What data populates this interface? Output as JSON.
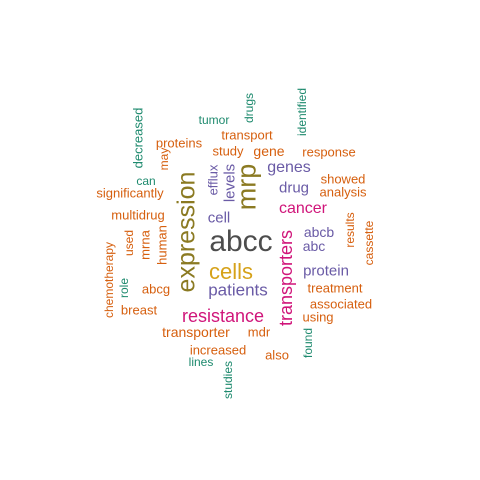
{
  "palette": {
    "dark_gray": "#4D4D4D",
    "gold": "#D6A21A",
    "olive": "#8B7A22",
    "magenta": "#D0157A",
    "purple": "#6A5BA6",
    "orange": "#D65F0E",
    "teal": "#1E8A6E"
  },
  "words": [
    {
      "text": "abcc",
      "color": "#4D4D4D"
    },
    {
      "text": "expression",
      "color": "#8B7A22"
    },
    {
      "text": "mrp",
      "color": "#8B7A22"
    },
    {
      "text": "cells",
      "color": "#D6A21A"
    },
    {
      "text": "resistance",
      "color": "#D0157A"
    },
    {
      "text": "transporters",
      "color": "#D0157A"
    },
    {
      "text": "cancer",
      "color": "#D0157A"
    },
    {
      "text": "patients",
      "color": "#6A5BA6"
    },
    {
      "text": "genes",
      "color": "#6A5BA6"
    },
    {
      "text": "drug",
      "color": "#6A5BA6"
    },
    {
      "text": "cell",
      "color": "#6A5BA6"
    },
    {
      "text": "levels",
      "color": "#6A5BA6"
    },
    {
      "text": "efflux",
      "color": "#6A5BA6"
    },
    {
      "text": "protein",
      "color": "#6A5BA6"
    },
    {
      "text": "abcb",
      "color": "#6A5BA6"
    },
    {
      "text": "abc",
      "color": "#6A5BA6"
    },
    {
      "text": "gene",
      "color": "#D65F0E"
    },
    {
      "text": "study",
      "color": "#D65F0E"
    },
    {
      "text": "transport",
      "color": "#D65F0E"
    },
    {
      "text": "proteins",
      "color": "#D65F0E"
    },
    {
      "text": "may",
      "color": "#D65F0E"
    },
    {
      "text": "significantly",
      "color": "#D65F0E"
    },
    {
      "text": "multidrug",
      "color": "#D65F0E"
    },
    {
      "text": "human",
      "color": "#D65F0E"
    },
    {
      "text": "mrna",
      "color": "#D65F0E"
    },
    {
      "text": "used",
      "color": "#D65F0E"
    },
    {
      "text": "chemotherapy",
      "color": "#D65F0E"
    },
    {
      "text": "abcg",
      "color": "#D65F0E"
    },
    {
      "text": "breast",
      "color": "#D65F0E"
    },
    {
      "text": "transporter",
      "color": "#D65F0E"
    },
    {
      "text": "mdr",
      "color": "#D65F0E"
    },
    {
      "text": "increased",
      "color": "#D65F0E"
    },
    {
      "text": "also",
      "color": "#D65F0E"
    },
    {
      "text": "response",
      "color": "#D65F0E"
    },
    {
      "text": "showed",
      "color": "#D65F0E"
    },
    {
      "text": "analysis",
      "color": "#D65F0E"
    },
    {
      "text": "results",
      "color": "#D65F0E"
    },
    {
      "text": "cassette",
      "color": "#D65F0E"
    },
    {
      "text": "treatment",
      "color": "#D65F0E"
    },
    {
      "text": "associated",
      "color": "#D65F0E"
    },
    {
      "text": "using",
      "color": "#D65F0E"
    },
    {
      "text": "tumor",
      "color": "#1E8A6E"
    },
    {
      "text": "drugs",
      "color": "#1E8A6E"
    },
    {
      "text": "identified",
      "color": "#1E8A6E"
    },
    {
      "text": "decreased",
      "color": "#1E8A6E"
    },
    {
      "text": "can",
      "color": "#1E8A6E"
    },
    {
      "text": "role",
      "color": "#1E8A6E"
    },
    {
      "text": "lines",
      "color": "#1E8A6E"
    },
    {
      "text": "studies",
      "color": "#1E8A6E"
    },
    {
      "text": "found",
      "color": "#1E8A6E"
    }
  ]
}
